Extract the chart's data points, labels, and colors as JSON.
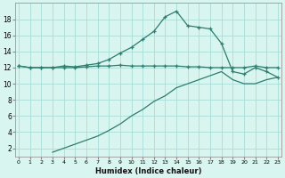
{
  "xlabel": "Humidex (Indice chaleur)",
  "bg_color": "#d8f5f0",
  "line_color": "#2e7d6e",
  "grid_color": "#aaddd8",
  "xlim": [
    0,
    23
  ],
  "ylim": [
    1,
    20
  ],
  "xticks": [
    0,
    1,
    2,
    3,
    4,
    5,
    6,
    7,
    8,
    9,
    10,
    11,
    12,
    13,
    14,
    15,
    16,
    17,
    18,
    19,
    20,
    21,
    22,
    23
  ],
  "yticks": [
    2,
    4,
    6,
    8,
    10,
    12,
    14,
    16,
    18
  ],
  "line1_x": [
    0,
    1,
    2,
    3,
    4,
    5,
    6,
    7,
    8,
    9,
    10,
    11,
    12,
    13,
    14,
    15,
    16,
    17,
    18,
    19,
    20,
    21,
    22,
    23
  ],
  "line1_y": [
    12.2,
    12.0,
    12.0,
    12.0,
    12.0,
    12.0,
    12.1,
    12.2,
    12.2,
    12.3,
    12.2,
    12.2,
    12.2,
    12.2,
    12.2,
    12.1,
    12.1,
    12.0,
    12.0,
    12.0,
    12.0,
    12.2,
    12.0,
    12.0
  ],
  "line2_x": [
    0,
    1,
    2,
    3,
    4,
    5,
    6,
    7,
    8,
    9,
    10,
    11,
    12,
    13,
    14,
    15,
    16,
    17,
    18,
    19,
    20,
    21,
    22,
    23
  ],
  "line2_y": [
    12.2,
    12.0,
    12.0,
    12.0,
    12.2,
    12.1,
    12.3,
    12.5,
    13.0,
    13.8,
    14.5,
    15.5,
    16.5,
    18.3,
    19.0,
    17.2,
    17.0,
    16.8,
    15.0,
    11.5,
    11.2,
    12.0,
    11.5,
    10.8
  ],
  "line3_x": [
    3,
    4,
    5,
    6,
    7,
    8,
    9,
    10,
    11,
    12,
    13,
    14,
    15,
    16,
    17,
    18,
    19,
    20,
    21,
    22,
    23
  ],
  "line3_y": [
    1.5,
    2.0,
    2.5,
    3.0,
    3.5,
    4.2,
    5.0,
    6.0,
    6.8,
    7.8,
    8.5,
    9.5,
    10.0,
    10.5,
    11.0,
    11.5,
    10.5,
    10.0,
    10.0,
    10.5,
    10.8
  ]
}
